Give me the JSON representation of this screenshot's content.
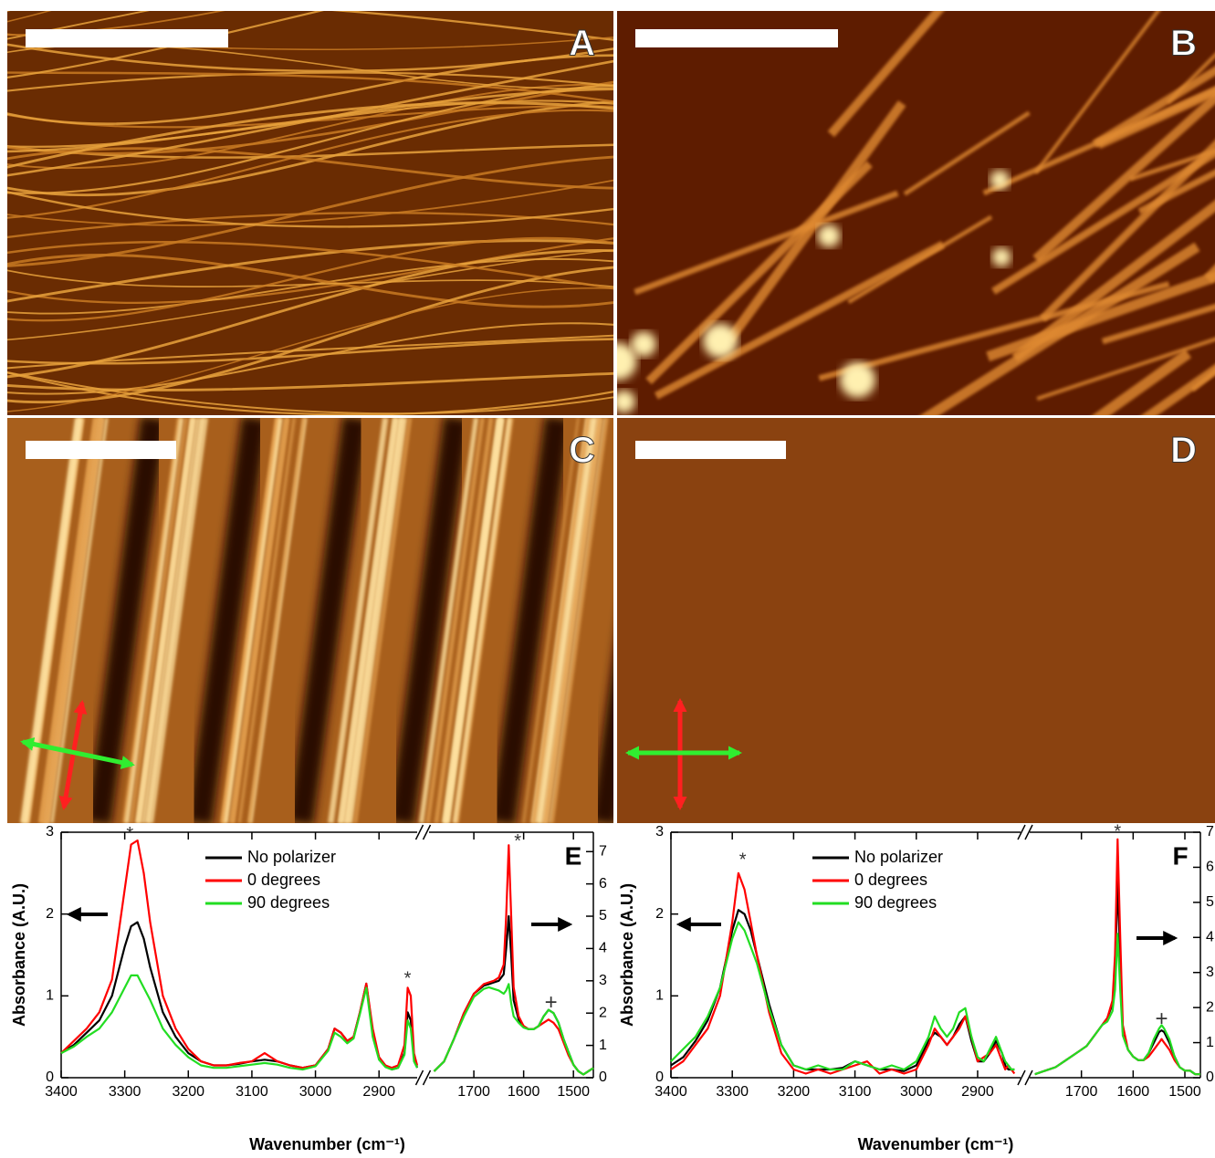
{
  "panels": [
    "A",
    "B",
    "C",
    "D"
  ],
  "chart_data": [
    {
      "type": "line",
      "label": "E",
      "y_label": "Absorbance (A.U.)",
      "x_label": "Wavenumber (cm⁻¹)",
      "ylim": [
        0,
        3
      ],
      "yticks": [
        0,
        1,
        2,
        3
      ],
      "y2lim": [
        0,
        7.6
      ],
      "y2ticks": [
        0,
        1,
        2,
        3,
        4,
        5,
        6,
        7
      ],
      "segments": [
        {
          "axis": "y",
          "xlim": [
            3400,
            2840
          ],
          "xticks": [
            3400,
            3300,
            3200,
            3100,
            3000,
            2900
          ],
          "x": [
            3400,
            3380,
            3360,
            3340,
            3320,
            3300,
            3290,
            3280,
            3270,
            3260,
            3240,
            3220,
            3200,
            3180,
            3160,
            3140,
            3120,
            3100,
            3080,
            3060,
            3040,
            3020,
            3000,
            2980,
            2970,
            2960,
            2950,
            2940,
            2930,
            2920,
            2910,
            2900,
            2890,
            2880,
            2870,
            2860,
            2855,
            2850,
            2845,
            2840
          ]
        },
        {
          "axis": "y2",
          "xlim": [
            1790,
            1460
          ],
          "xticks": [
            1700,
            1600,
            1500
          ],
          "x": [
            1780,
            1760,
            1740,
            1720,
            1700,
            1680,
            1670,
            1660,
            1650,
            1640,
            1635,
            1630,
            1625,
            1620,
            1610,
            1600,
            1590,
            1580,
            1570,
            1560,
            1550,
            1540,
            1530,
            1520,
            1510,
            1500,
            1490,
            1480,
            1470,
            1460
          ]
        }
      ],
      "series": [
        {
          "name": "No polarizer",
          "color": "#000000",
          "values": [
            [
              0.3,
              0.4,
              0.55,
              0.7,
              1.0,
              1.6,
              1.85,
              1.9,
              1.7,
              1.35,
              0.8,
              0.5,
              0.3,
              0.2,
              0.15,
              0.15,
              0.17,
              0.2,
              0.22,
              0.2,
              0.15,
              0.12,
              0.15,
              0.35,
              0.6,
              0.55,
              0.45,
              0.5,
              0.8,
              1.15,
              0.55,
              0.25,
              0.15,
              0.1,
              0.12,
              0.3,
              0.8,
              0.7,
              0.25,
              0.12
            ],
            [
              0.2,
              0.5,
              1.2,
              2.0,
              2.6,
              2.85,
              2.9,
              2.95,
              3.0,
              3.2,
              4.0,
              5.0,
              3.8,
              2.4,
              1.8,
              1.6,
              1.5,
              1.5,
              1.6,
              1.9,
              2.1,
              2.0,
              1.7,
              1.2,
              0.8,
              0.4,
              0.2,
              0.1,
              0.2,
              0.3
            ]
          ]
        },
        {
          "name": "0 degrees",
          "color": "#ff0000",
          "values": [
            [
              0.3,
              0.45,
              0.6,
              0.8,
              1.2,
              2.3,
              2.85,
              2.9,
              2.5,
              1.9,
              1.0,
              0.6,
              0.35,
              0.2,
              0.15,
              0.15,
              0.18,
              0.2,
              0.3,
              0.2,
              0.15,
              0.12,
              0.15,
              0.35,
              0.6,
              0.55,
              0.45,
              0.5,
              0.8,
              1.15,
              0.6,
              0.25,
              0.15,
              0.12,
              0.15,
              0.4,
              1.1,
              1.0,
              0.3,
              0.15
            ],
            [
              0.2,
              0.5,
              1.2,
              2.0,
              2.6,
              2.9,
              2.95,
              3.0,
              3.1,
              3.5,
              5.0,
              7.2,
              5.0,
              2.8,
              1.9,
              1.6,
              1.5,
              1.5,
              1.6,
              1.7,
              1.8,
              1.7,
              1.5,
              1.1,
              0.7,
              0.4,
              0.2,
              0.1,
              0.2,
              0.3
            ]
          ]
        },
        {
          "name": "90 degrees",
          "color": "#22dd22",
          "values": [
            [
              0.3,
              0.38,
              0.5,
              0.6,
              0.8,
              1.1,
              1.25,
              1.25,
              1.1,
              0.95,
              0.6,
              0.4,
              0.25,
              0.15,
              0.12,
              0.12,
              0.14,
              0.16,
              0.18,
              0.16,
              0.12,
              0.1,
              0.14,
              0.33,
              0.55,
              0.5,
              0.42,
              0.48,
              0.78,
              1.1,
              0.5,
              0.22,
              0.13,
              0.1,
              0.12,
              0.28,
              0.7,
              0.6,
              0.2,
              0.12
            ],
            [
              0.2,
              0.5,
              1.2,
              1.9,
              2.5,
              2.75,
              2.8,
              2.75,
              2.7,
              2.6,
              2.7,
              2.9,
              2.3,
              1.9,
              1.7,
              1.55,
              1.5,
              1.5,
              1.6,
              1.9,
              2.1,
              2.0,
              1.7,
              1.2,
              0.8,
              0.4,
              0.2,
              0.1,
              0.2,
              0.3
            ]
          ]
        }
      ],
      "annotations": [
        {
          "text": "*",
          "segment": 0,
          "x": 3292,
          "y": 2.97
        },
        {
          "text": "*",
          "segment": 0,
          "x": 2855,
          "y": 1.2
        },
        {
          "text": "*",
          "segment": 1,
          "x": 1612,
          "y": 7.3
        },
        {
          "text": "+",
          "segment": 1,
          "x": 1545,
          "y": 2.3
        }
      ]
    },
    {
      "type": "line",
      "label": "F",
      "y_label": "Absorbance (A.U.)",
      "x_label": "Wavenumber (cm⁻¹)",
      "ylim": [
        0,
        3
      ],
      "yticks": [
        0,
        1,
        2,
        3
      ],
      "y2lim": [
        0,
        7
      ],
      "y2ticks": [
        0,
        1,
        2,
        3,
        4,
        5,
        6,
        7
      ],
      "segments": [
        {
          "axis": "y",
          "xlim": [
            3400,
            2830
          ],
          "xticks": [
            3400,
            3300,
            3200,
            3100,
            3000,
            2900
          ],
          "x": [
            3400,
            3380,
            3360,
            3340,
            3320,
            3300,
            3290,
            3280,
            3270,
            3260,
            3240,
            3220,
            3200,
            3180,
            3160,
            3140,
            3120,
            3100,
            3080,
            3060,
            3040,
            3020,
            3000,
            2980,
            2970,
            2960,
            2950,
            2940,
            2930,
            2920,
            2910,
            2900,
            2890,
            2880,
            2870,
            2860,
            2855,
            2850,
            2845,
            2840
          ]
        },
        {
          "axis": "y2",
          "xlim": [
            1800,
            1470
          ],
          "xticks": [
            1700,
            1600,
            1500
          ],
          "x": [
            1790,
            1770,
            1750,
            1730,
            1710,
            1690,
            1670,
            1660,
            1650,
            1640,
            1635,
            1630,
            1625,
            1620,
            1610,
            1600,
            1590,
            1580,
            1570,
            1560,
            1550,
            1545,
            1540,
            1530,
            1520,
            1510,
            1500,
            1490,
            1480,
            1470
          ]
        }
      ],
      "series": [
        {
          "name": "No polarizer",
          "color": "#000000",
          "values": [
            [
              0.15,
              0.25,
              0.45,
              0.7,
              1.1,
              1.8,
              2.05,
              2.0,
              1.8,
              1.5,
              0.9,
              0.4,
              0.15,
              0.1,
              0.1,
              0.1,
              0.12,
              0.2,
              0.15,
              0.1,
              0.1,
              0.08,
              0.15,
              0.45,
              0.55,
              0.5,
              0.4,
              0.5,
              0.65,
              0.75,
              0.45,
              0.2,
              0.2,
              0.3,
              0.45,
              0.3,
              0.15,
              0.1,
              0.1,
              0.1
            ],
            [
              0.1,
              0.2,
              0.3,
              0.5,
              0.7,
              0.9,
              1.3,
              1.5,
              1.7,
              2.1,
              3.0,
              5.6,
              3.4,
              1.3,
              0.8,
              0.6,
              0.5,
              0.5,
              0.7,
              1.0,
              1.3,
              1.35,
              1.3,
              1.0,
              0.6,
              0.3,
              0.2,
              0.2,
              0.1,
              0.1
            ]
          ]
        },
        {
          "name": "0 degrees",
          "color": "#ff0000",
          "values": [
            [
              0.1,
              0.2,
              0.4,
              0.6,
              1.0,
              1.9,
              2.5,
              2.3,
              1.9,
              1.5,
              0.8,
              0.3,
              0.1,
              0.05,
              0.1,
              0.05,
              0.1,
              0.15,
              0.2,
              0.05,
              0.1,
              0.05,
              0.1,
              0.4,
              0.6,
              0.5,
              0.4,
              0.5,
              0.6,
              0.75,
              0.5,
              0.2,
              0.25,
              0.3,
              0.4,
              0.2,
              0.1,
              0.15,
              0.1,
              0.05
            ],
            [
              0.1,
              0.2,
              0.3,
              0.5,
              0.7,
              0.9,
              1.3,
              1.5,
              1.7,
              2.2,
              3.5,
              6.8,
              4.0,
              1.5,
              0.8,
              0.6,
              0.5,
              0.5,
              0.6,
              0.8,
              1.0,
              1.1,
              1.0,
              0.8,
              0.5,
              0.3,
              0.2,
              0.2,
              0.1,
              0.1
            ]
          ]
        },
        {
          "name": "90 degrees",
          "color": "#22dd22",
          "values": [
            [
              0.2,
              0.35,
              0.5,
              0.75,
              1.1,
              1.7,
              1.9,
              1.8,
              1.6,
              1.4,
              0.85,
              0.4,
              0.15,
              0.1,
              0.15,
              0.1,
              0.1,
              0.2,
              0.15,
              0.1,
              0.15,
              0.1,
              0.2,
              0.5,
              0.75,
              0.6,
              0.5,
              0.6,
              0.8,
              0.85,
              0.5,
              0.25,
              0.2,
              0.35,
              0.5,
              0.3,
              0.2,
              0.15,
              0.1,
              0.1
            ],
            [
              0.1,
              0.2,
              0.3,
              0.5,
              0.7,
              0.9,
              1.3,
              1.5,
              1.6,
              1.9,
              2.5,
              4.1,
              2.5,
              1.2,
              0.8,
              0.6,
              0.5,
              0.5,
              0.7,
              1.1,
              1.4,
              1.5,
              1.4,
              1.1,
              0.6,
              0.3,
              0.2,
              0.2,
              0.1,
              0.1
            ]
          ]
        }
      ],
      "annotations": [
        {
          "text": "*",
          "segment": 0,
          "x": 3283,
          "y": 2.65
        },
        {
          "text": "*",
          "segment": 1,
          "x": 1630,
          "y": 7.0
        },
        {
          "text": "+",
          "segment": 1,
          "x": 1545,
          "y": 1.65
        }
      ]
    }
  ]
}
